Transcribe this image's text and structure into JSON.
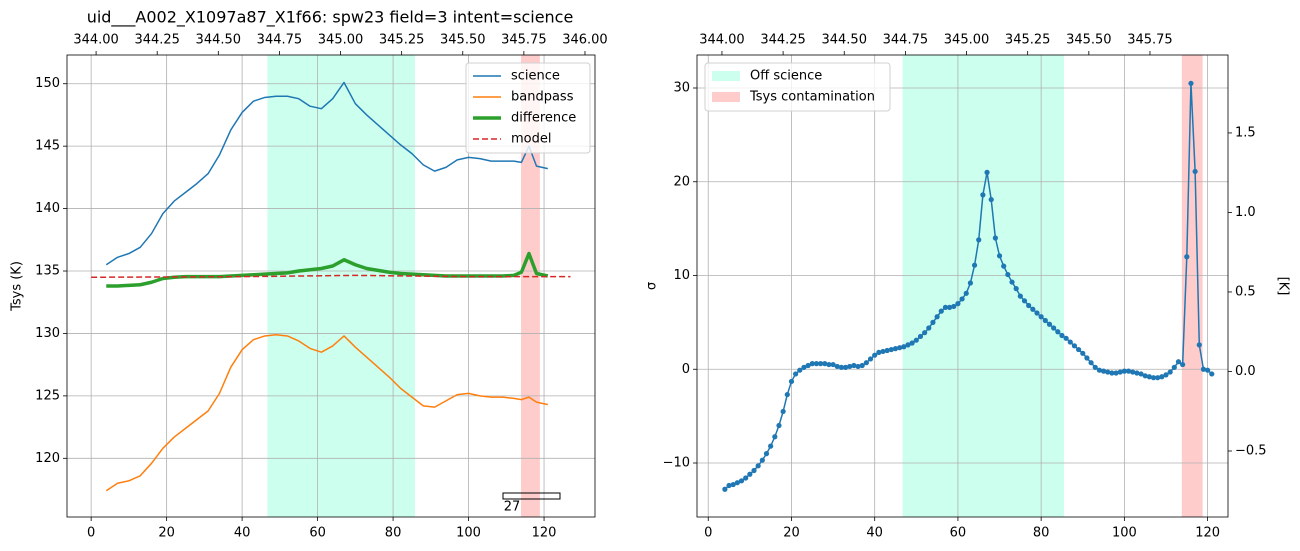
{
  "chart_data": [
    {
      "type": "line",
      "title": "uid___A002_X1097a87_X1f66: spw23 field=3 intent=science",
      "ylabel": "Tsys (K)",
      "annotation": "27",
      "xlim": [
        -6.4,
        133.5
      ],
      "xticks": [
        0,
        20,
        40,
        60,
        80,
        100,
        120
      ],
      "ylim": [
        115.3,
        152.3
      ],
      "yticks": [
        120,
        125,
        130,
        135,
        140,
        145,
        150
      ],
      "x2lim": [
        343.881,
        346.041
      ],
      "x2ticks": [
        {
          "value": 344.0,
          "label": "344.00"
        },
        {
          "value": 344.25,
          "label": "344.25"
        },
        {
          "value": 344.5,
          "label": "344.50"
        },
        {
          "value": 344.75,
          "label": "344.75"
        },
        {
          "value": 345.0,
          "label": "345.00"
        },
        {
          "value": 345.25,
          "label": "345.25"
        },
        {
          "value": 345.5,
          "label": "345.50"
        },
        {
          "value": 345.75,
          "label": "345.75"
        },
        {
          "value": 346.0,
          "label": "346.00"
        }
      ],
      "grid": true,
      "legend": "upper right",
      "markers": false,
      "spans": [
        {
          "range": [
            46.7,
            85.8
          ],
          "color": "#ccffee"
        },
        {
          "range": [
            113.9,
            118.9
          ],
          "color": "#ffcccc"
        }
      ],
      "series": [
        {
          "name": "science",
          "color": "#1f77b4",
          "linewidth": 1.5,
          "linestyle": "solid",
          "x": [
            4,
            7,
            10,
            13,
            16,
            19,
            22,
            25,
            28,
            31,
            34,
            37,
            40,
            43,
            46,
            49,
            52,
            55,
            58,
            61,
            64,
            67,
            70,
            73,
            76,
            79,
            82,
            85,
            88,
            91,
            94,
            97,
            100,
            103,
            106,
            109,
            112,
            114,
            116,
            118,
            121
          ],
          "values": [
            135.5,
            136.1,
            136.4,
            136.9,
            138.0,
            139.6,
            140.6,
            141.3,
            142.0,
            142.8,
            144.3,
            146.3,
            147.7,
            148.6,
            148.9,
            149.0,
            149.0,
            148.8,
            148.2,
            148.0,
            148.8,
            150.1,
            148.4,
            147.5,
            146.7,
            145.9,
            145.1,
            144.4,
            143.5,
            143.0,
            143.3,
            143.9,
            144.1,
            144.0,
            143.8,
            143.8,
            143.8,
            143.7,
            145.0,
            143.4,
            143.2
          ]
        },
        {
          "name": "bandpass",
          "color": "#ff7f0e",
          "linewidth": 1.5,
          "linestyle": "solid",
          "x": [
            4,
            7,
            10,
            13,
            16,
            19,
            22,
            25,
            28,
            31,
            34,
            37,
            40,
            43,
            46,
            49,
            52,
            55,
            58,
            61,
            64,
            67,
            70,
            73,
            76,
            79,
            82,
            85,
            88,
            91,
            94,
            97,
            100,
            103,
            106,
            109,
            112,
            114,
            116,
            118,
            121
          ],
          "values": [
            117.4,
            118.0,
            118.2,
            118.6,
            119.6,
            120.8,
            121.7,
            122.4,
            123.1,
            123.8,
            125.2,
            127.3,
            128.7,
            129.5,
            129.8,
            129.9,
            129.8,
            129.4,
            128.8,
            128.5,
            129.0,
            129.8,
            128.9,
            128.1,
            127.3,
            126.5,
            125.6,
            124.9,
            124.2,
            124.1,
            124.6,
            125.1,
            125.2,
            125.0,
            124.9,
            124.9,
            124.8,
            124.7,
            124.9,
            124.5,
            124.3
          ]
        },
        {
          "name": "difference",
          "color": "#2ca02c",
          "linewidth": 3.5,
          "linestyle": "solid",
          "x": [
            4,
            7,
            10,
            13,
            16,
            19,
            22,
            25,
            28,
            31,
            34,
            37,
            40,
            43,
            46,
            49,
            52,
            55,
            58,
            61,
            64,
            67,
            70,
            73,
            76,
            79,
            82,
            85,
            88,
            91,
            94,
            97,
            100,
            103,
            106,
            109,
            112,
            114,
            116,
            118,
            121
          ],
          "values": [
            133.8,
            133.8,
            133.85,
            133.9,
            134.1,
            134.4,
            134.5,
            134.55,
            134.55,
            134.55,
            134.55,
            134.6,
            134.65,
            134.7,
            134.75,
            134.8,
            134.85,
            135.0,
            135.1,
            135.2,
            135.4,
            135.9,
            135.5,
            135.2,
            135.05,
            134.9,
            134.8,
            134.75,
            134.7,
            134.65,
            134.6,
            134.6,
            134.6,
            134.6,
            134.6,
            134.6,
            134.65,
            134.9,
            136.4,
            134.8,
            134.6
          ]
        },
        {
          "name": "model",
          "color": "#d62728",
          "linewidth": 1.5,
          "linestyle": "dashed",
          "x": [
            0,
            40,
            70,
            100,
            127
          ],
          "values": [
            134.5,
            134.55,
            134.65,
            134.55,
            134.55
          ]
        }
      ]
    },
    {
      "type": "line",
      "ylabel": "σ",
      "y2label": "[K]",
      "xlim": [
        -2.7,
        124.9
      ],
      "xticks": [
        0,
        20,
        40,
        60,
        80,
        100,
        120
      ],
      "ylim": [
        -15.76,
        33.52
      ],
      "yticks": [
        {
          "value": -10,
          "label": "−10"
        },
        0,
        10,
        20,
        30
      ],
      "y2lim": [
        -0.915,
        1.99
      ],
      "y2ticks": [
        {
          "value": -0.5,
          "label": "−0.5"
        },
        {
          "value": 0.0,
          "label": "0.0"
        },
        {
          "value": 0.5,
          "label": "0.5"
        },
        {
          "value": 1.0,
          "label": "1.0"
        },
        {
          "value": 1.5,
          "label": "1.5"
        }
      ],
      "x2lim": [
        343.898,
        346.069
      ],
      "x2ticks": [
        {
          "value": 344.0,
          "label": "344.00"
        },
        {
          "value": 344.25,
          "label": "344.25"
        },
        {
          "value": 344.5,
          "label": "344.50"
        },
        {
          "value": 344.75,
          "label": "344.75"
        },
        {
          "value": 345.0,
          "label": "345.00"
        },
        {
          "value": 345.25,
          "label": "345.25"
        },
        {
          "value": 345.5,
          "label": "345.50"
        },
        {
          "value": 345.75,
          "label": "345.75"
        }
      ],
      "grid": true,
      "legend": "upper left",
      "markers": true,
      "spans": [
        {
          "name": "Off science",
          "range": [
            46.7,
            85.5
          ],
          "color": "#ccffee"
        },
        {
          "name": "Tsys contamination",
          "range": [
            113.8,
            118.8
          ],
          "color": "#ffcccc"
        }
      ],
      "series": [
        {
          "color": "#1f77b4",
          "linewidth": 1.5,
          "linestyle": "solid",
          "x": [
            4,
            5,
            6,
            7,
            8,
            9,
            10,
            11,
            12,
            13,
            14,
            15,
            16,
            17,
            18,
            19,
            20,
            21,
            22,
            23,
            24,
            25,
            26,
            27,
            28,
            29,
            30,
            31,
            32,
            33,
            34,
            35,
            36,
            37,
            38,
            39,
            40,
            41,
            42,
            43,
            44,
            45,
            46,
            47,
            48,
            49,
            50,
            51,
            52,
            53,
            54,
            55,
            56,
            57,
            58,
            59,
            60,
            61,
            62,
            63,
            64,
            65,
            66,
            67,
            68,
            69,
            70,
            71,
            72,
            73,
            74,
            75,
            76,
            77,
            78,
            79,
            80,
            81,
            82,
            83,
            84,
            85,
            86,
            87,
            88,
            89,
            90,
            91,
            92,
            93,
            94,
            95,
            96,
            97,
            98,
            99,
            100,
            101,
            102,
            103,
            104,
            105,
            106,
            107,
            108,
            109,
            110,
            111,
            112,
            113,
            114,
            115,
            116,
            117,
            118,
            119,
            120,
            121
          ],
          "values": [
            -12.8,
            -12.4,
            -12.3,
            -12.1,
            -11.9,
            -11.6,
            -11.2,
            -10.8,
            -10.3,
            -9.7,
            -9.0,
            -8.2,
            -7.2,
            -6.0,
            -4.5,
            -2.7,
            -1.3,
            -0.5,
            -0.1,
            0.2,
            0.4,
            0.6,
            0.6,
            0.6,
            0.6,
            0.5,
            0.5,
            0.3,
            0.2,
            0.2,
            0.3,
            0.4,
            0.3,
            0.4,
            0.7,
            1.1,
            1.5,
            1.8,
            1.9,
            2.0,
            2.1,
            2.2,
            2.3,
            2.4,
            2.6,
            2.8,
            3.1,
            3.5,
            3.9,
            4.4,
            5.0,
            5.6,
            6.2,
            6.6,
            6.6,
            6.7,
            7.0,
            7.5,
            8.1,
            9.2,
            11.1,
            13.8,
            18.6,
            21.0,
            18.1,
            14.0,
            12.1,
            11.0,
            10.1,
            9.3,
            8.6,
            7.8,
            7.3,
            6.8,
            6.4,
            6.0,
            5.6,
            5.2,
            4.8,
            4.4,
            4.0,
            3.6,
            3.3,
            2.9,
            2.5,
            2.1,
            1.7,
            1.2,
            0.7,
            0.2,
            -0.1,
            -0.2,
            -0.3,
            -0.4,
            -0.4,
            -0.3,
            -0.2,
            -0.2,
            -0.3,
            -0.4,
            -0.5,
            -0.7,
            -0.8,
            -0.9,
            -0.9,
            -0.8,
            -0.6,
            -0.3,
            0.2,
            0.8,
            0.5,
            12.0,
            30.5,
            21.1,
            2.6,
            0.0,
            -0.1,
            -0.5
          ]
        }
      ]
    }
  ]
}
